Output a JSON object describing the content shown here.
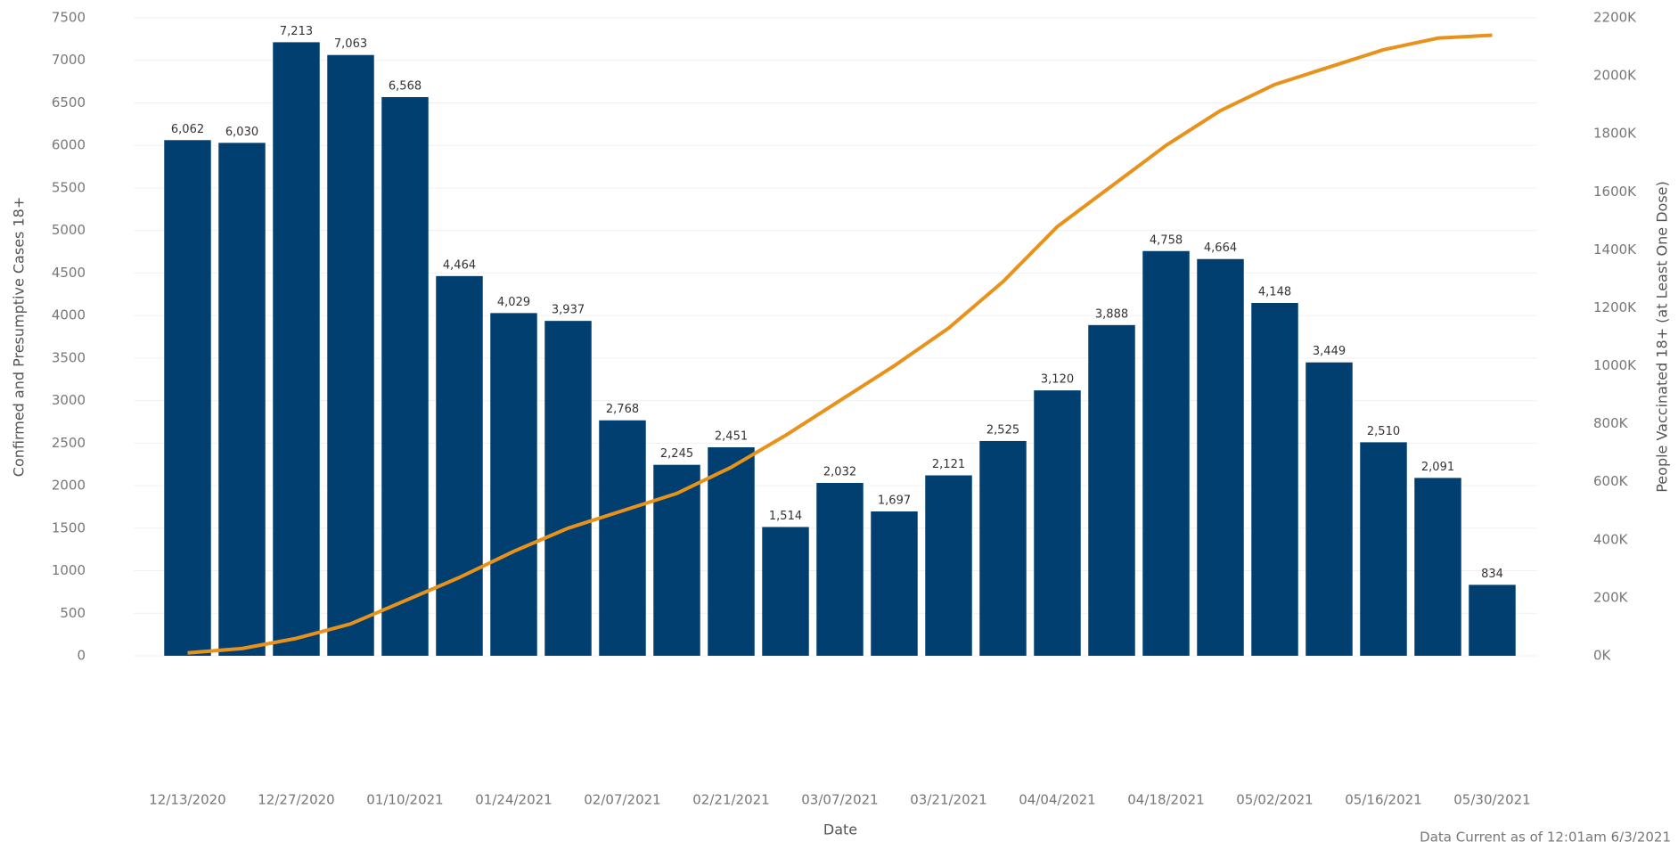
{
  "chart_data": {
    "type": "bar",
    "xlabel": "Date",
    "ylabel": "Confirmed and Presumptive Cases 18+",
    "y2label": "People Vaccinated 18+ (at Least One Dose)",
    "footnote": "Data Current as of 12:01am 6/3/2021",
    "categories": [
      "12/13/2020",
      null,
      "12/27/2020",
      null,
      "01/10/2021",
      null,
      "01/24/2021",
      null,
      "02/07/2021",
      null,
      "02/21/2021",
      null,
      "03/07/2021",
      null,
      "03/21/2021",
      null,
      "04/04/2021",
      null,
      "04/18/2021",
      null,
      "05/02/2021",
      null,
      "05/16/2021",
      null,
      "05/30/2021"
    ],
    "series": [
      {
        "name": "Confirmed and Presumptive Cases 18+",
        "type": "bar",
        "color": "#003f6f",
        "values": [
          6062,
          6030,
          7213,
          7063,
          6568,
          4464,
          4029,
          3937,
          2768,
          2245,
          2451,
          1514,
          2032,
          1697,
          2121,
          2525,
          3120,
          3888,
          4758,
          4664,
          4148,
          3449,
          2510,
          2091,
          834
        ],
        "value_labels": [
          "6,062",
          "6,030",
          "7,213",
          "7,063",
          "6,568",
          "4,464",
          "4,029",
          "3,937",
          "2,768",
          "2,245",
          "2,451",
          "1,514",
          "2,032",
          "1,697",
          "2,121",
          "2,525",
          "3,120",
          "3,888",
          "4,758",
          "4,664",
          "4,148",
          "3,449",
          "2,510",
          "2,091",
          "834"
        ]
      },
      {
        "name": "People Vaccinated 18+ (at Least One Dose)",
        "type": "line",
        "axis": "y2",
        "color": "#e8921c",
        "values": [
          10000,
          25000,
          60000,
          110000,
          190000,
          270000,
          360000,
          440000,
          500000,
          560000,
          650000,
          760000,
          880000,
          1000000,
          1130000,
          1290000,
          1480000,
          1620000,
          1760000,
          1880000,
          1970000,
          2030000,
          2090000,
          2130000,
          2140000
        ]
      }
    ],
    "ylim": [
      0,
      7500
    ],
    "yticks": [
      0,
      500,
      1000,
      1500,
      2000,
      2500,
      3000,
      3500,
      4000,
      4500,
      5000,
      5500,
      6000,
      6500,
      7000,
      7500
    ],
    "y2lim": [
      0,
      2200000
    ],
    "y2ticks": [
      {
        "value": 0,
        "label": "0K"
      },
      {
        "value": 200000,
        "label": "200K"
      },
      {
        "value": 400000,
        "label": "400K"
      },
      {
        "value": 600000,
        "label": "600K"
      },
      {
        "value": 800000,
        "label": "800K"
      },
      {
        "value": 1000000,
        "label": "1000K"
      },
      {
        "value": 1200000,
        "label": "1200K"
      },
      {
        "value": 1400000,
        "label": "1400K"
      },
      {
        "value": 1600000,
        "label": "1600K"
      },
      {
        "value": 1800000,
        "label": "1800K"
      },
      {
        "value": 2000000,
        "label": "2000K"
      },
      {
        "value": 2200000,
        "label": "2200K"
      }
    ],
    "grid": true
  }
}
